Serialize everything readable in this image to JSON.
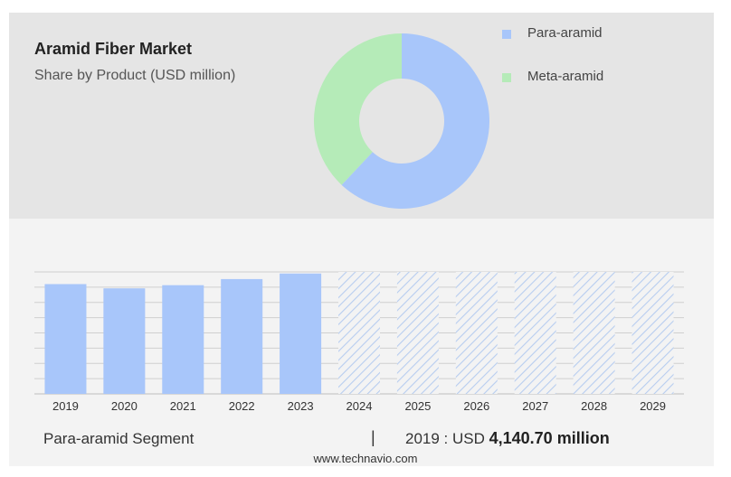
{
  "header": {
    "title": "Aramid Fiber Market",
    "subtitle": "Share by Product (USD million)"
  },
  "legend": [
    {
      "label": "Para-aramid",
      "color": "#a8c6fa"
    },
    {
      "label": "Meta-aramid",
      "color": "#b5ebb8"
    }
  ],
  "chart_data": [
    {
      "type": "pie",
      "variant": "donut",
      "series": [
        {
          "name": "Para-aramid",
          "value": 62,
          "color": "#a8c6fa"
        },
        {
          "name": "Meta-aramid",
          "value": 38,
          "color": "#b5ebb8"
        }
      ]
    },
    {
      "type": "bar",
      "categories": [
        "2019",
        "2020",
        "2021",
        "2022",
        "2023",
        "2024",
        "2025",
        "2026",
        "2027",
        "2028",
        "2029"
      ],
      "values": [
        4140.7,
        3980,
        4100,
        4330,
        4540,
        null,
        null,
        null,
        null,
        null,
        null
      ],
      "forecast_categories": [
        "2024",
        "2025",
        "2026",
        "2027",
        "2028",
        "2029"
      ],
      "ylim": [
        0,
        4600
      ],
      "grid": true,
      "colors": {
        "actual": "#a8c6fa",
        "forecast_hatch": "#b7cdf0"
      }
    }
  ],
  "footer": {
    "segment": "Para-aramid Segment",
    "separator": "|",
    "value_prefix": "2019 : USD",
    "value_bold": "4,140.70 million",
    "source": "www.technavio.com"
  }
}
